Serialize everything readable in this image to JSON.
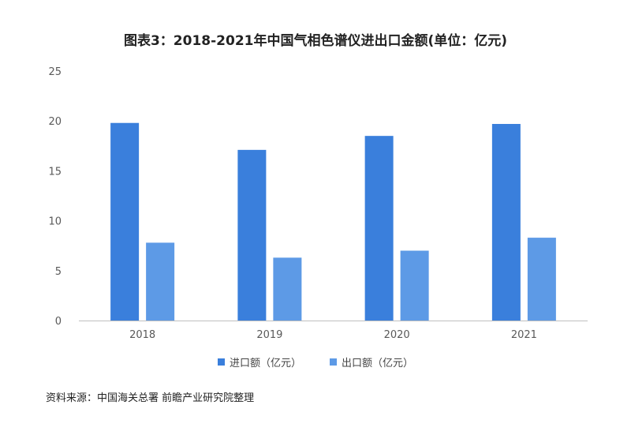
{
  "title": "图表3：2018-2021年中国气相色谱仪进出口金额(单位：亿元)",
  "source": "资料来源：中国海关总署 前瞻产业研究院整理",
  "chart_data": {
    "type": "bar",
    "categories": [
      "2018",
      "2019",
      "2020",
      "2021"
    ],
    "series": [
      {
        "name": "进口额（亿元）",
        "values": [
          19.8,
          17.1,
          18.5,
          19.7
        ],
        "color": "#3a7fdc"
      },
      {
        "name": "出口额（亿元）",
        "values": [
          7.8,
          6.3,
          7.0,
          8.3
        ],
        "color": "#5d9ae6"
      }
    ],
    "ylim": [
      0,
      25
    ],
    "yticks": [
      0,
      5,
      10,
      15,
      20,
      25
    ],
    "grid": false,
    "legend_position": "bottom"
  }
}
